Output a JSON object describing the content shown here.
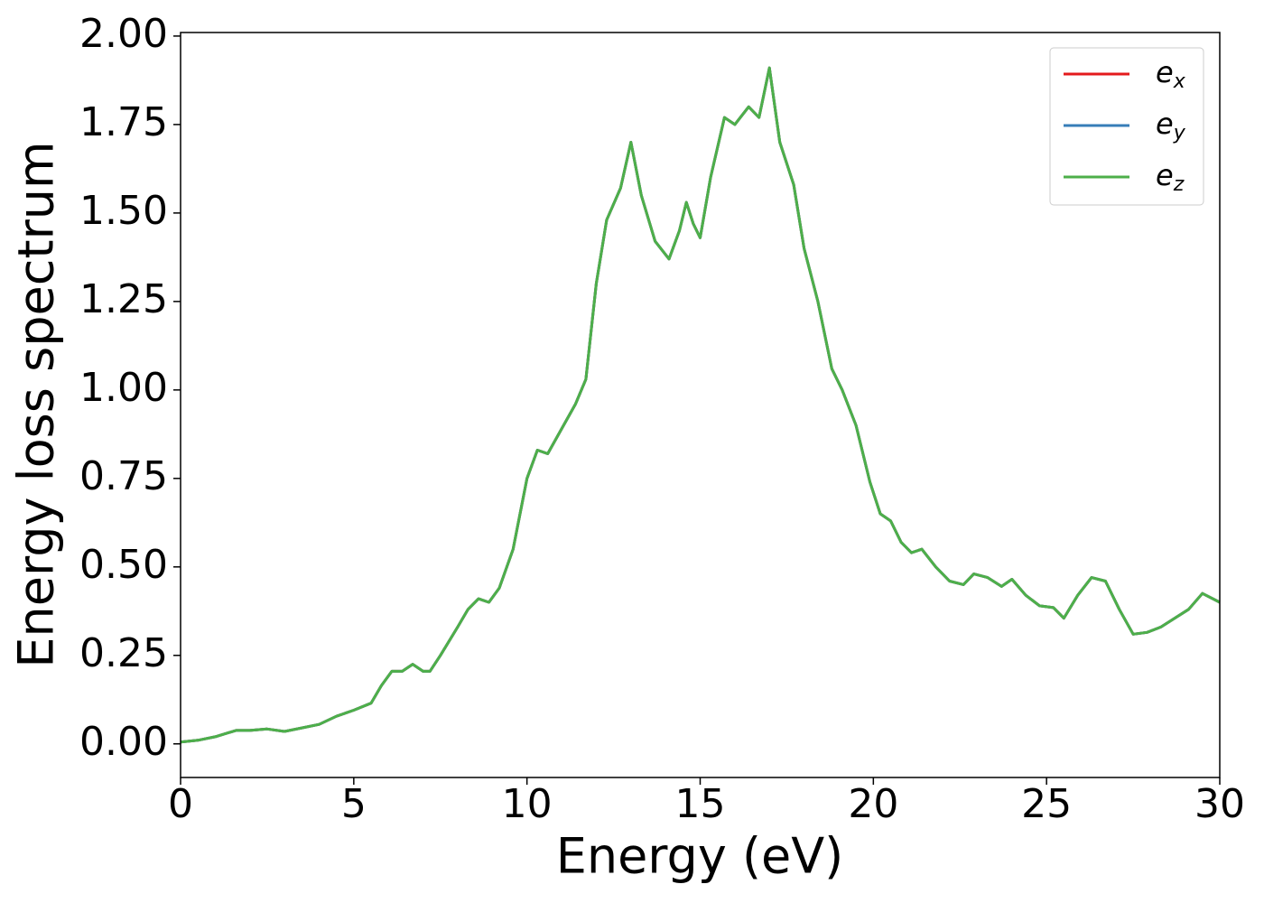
{
  "chart_data": {
    "type": "line",
    "xlabel": "Energy (eV)",
    "ylabel": "Energy loss spectrum",
    "x": [
      0,
      0.5,
      1,
      1.6,
      2,
      2.5,
      3,
      3.5,
      4,
      4.5,
      5,
      5.5,
      5.8,
      6.1,
      6.4,
      6.7,
      7,
      7.2,
      7.5,
      8,
      8.3,
      8.6,
      8.9,
      9.2,
      9.6,
      10,
      10.3,
      10.6,
      11,
      11.4,
      11.7,
      12,
      12.3,
      12.7,
      13,
      13.3,
      13.7,
      14.1,
      14.4,
      14.6,
      14.8,
      15,
      15.3,
      15.7,
      16,
      16.4,
      16.7,
      17,
      17.3,
      17.7,
      18,
      18.4,
      18.8,
      19.1,
      19.5,
      19.9,
      20.2,
      20.5,
      20.8,
      21.1,
      21.4,
      21.8,
      22.2,
      22.6,
      22.9,
      23.3,
      23.7,
      24,
      24.4,
      24.8,
      25.2,
      25.5,
      25.9,
      26.3,
      26.7,
      27.1,
      27.5,
      27.9,
      28.3,
      28.7,
      29.1,
      29.5,
      30
    ],
    "series": [
      {
        "name": "e_x",
        "color": "#e41a1c",
        "values": [
          0.005,
          0.01,
          0.02,
          0.038,
          0.038,
          0.042,
          0.035,
          0.045,
          0.055,
          0.078,
          0.095,
          0.115,
          0.165,
          0.205,
          0.205,
          0.225,
          0.205,
          0.205,
          0.25,
          0.33,
          0.38,
          0.41,
          0.4,
          0.44,
          0.55,
          0.75,
          0.83,
          0.82,
          0.89,
          0.96,
          1.03,
          1.3,
          1.48,
          1.57,
          1.7,
          1.55,
          1.42,
          1.37,
          1.45,
          1.53,
          1.47,
          1.43,
          1.6,
          1.77,
          1.75,
          1.8,
          1.77,
          1.91,
          1.7,
          1.58,
          1.4,
          1.25,
          1.06,
          1.0,
          0.9,
          0.74,
          0.65,
          0.63,
          0.57,
          0.54,
          0.55,
          0.5,
          0.46,
          0.45,
          0.48,
          0.47,
          0.445,
          0.465,
          0.42,
          0.39,
          0.385,
          0.355,
          0.42,
          0.47,
          0.46,
          0.38,
          0.31,
          0.315,
          0.33,
          0.355,
          0.38,
          0.425,
          0.4
        ]
      },
      {
        "name": "e_y",
        "color": "#377eb8",
        "values": [
          0.005,
          0.01,
          0.02,
          0.038,
          0.038,
          0.042,
          0.035,
          0.045,
          0.055,
          0.078,
          0.095,
          0.115,
          0.165,
          0.205,
          0.205,
          0.225,
          0.205,
          0.205,
          0.25,
          0.33,
          0.38,
          0.41,
          0.4,
          0.44,
          0.55,
          0.75,
          0.83,
          0.82,
          0.89,
          0.96,
          1.03,
          1.3,
          1.48,
          1.57,
          1.7,
          1.55,
          1.42,
          1.37,
          1.45,
          1.53,
          1.47,
          1.43,
          1.6,
          1.77,
          1.75,
          1.8,
          1.77,
          1.91,
          1.7,
          1.58,
          1.4,
          1.25,
          1.06,
          1.0,
          0.9,
          0.74,
          0.65,
          0.63,
          0.57,
          0.54,
          0.55,
          0.5,
          0.46,
          0.45,
          0.48,
          0.47,
          0.445,
          0.465,
          0.42,
          0.39,
          0.385,
          0.355,
          0.42,
          0.47,
          0.46,
          0.38,
          0.31,
          0.315,
          0.33,
          0.355,
          0.38,
          0.425,
          0.4
        ]
      },
      {
        "name": "e_z",
        "color": "#4daf4a",
        "values": [
          0.005,
          0.01,
          0.02,
          0.038,
          0.038,
          0.042,
          0.035,
          0.045,
          0.055,
          0.078,
          0.095,
          0.115,
          0.165,
          0.205,
          0.205,
          0.225,
          0.205,
          0.205,
          0.25,
          0.33,
          0.38,
          0.41,
          0.4,
          0.44,
          0.55,
          0.75,
          0.83,
          0.82,
          0.89,
          0.96,
          1.03,
          1.3,
          1.48,
          1.57,
          1.7,
          1.55,
          1.42,
          1.37,
          1.45,
          1.53,
          1.47,
          1.43,
          1.6,
          1.77,
          1.75,
          1.8,
          1.77,
          1.91,
          1.7,
          1.58,
          1.4,
          1.25,
          1.06,
          1.0,
          0.9,
          0.74,
          0.65,
          0.63,
          0.57,
          0.54,
          0.55,
          0.5,
          0.46,
          0.45,
          0.48,
          0.47,
          0.445,
          0.465,
          0.42,
          0.39,
          0.385,
          0.355,
          0.42,
          0.47,
          0.46,
          0.38,
          0.31,
          0.315,
          0.33,
          0.355,
          0.38,
          0.425,
          0.4
        ]
      }
    ],
    "xlim": [
      0,
      30
    ],
    "xticks": [
      0,
      5,
      10,
      15,
      20,
      25,
      30
    ],
    "ylim": [
      -0.095,
      2.01
    ],
    "yticks": [
      {
        "value": 0,
        "label": "0.00"
      },
      {
        "value": 0.25,
        "label": "0.25"
      },
      {
        "value": 0.5,
        "label": "0.50"
      },
      {
        "value": 0.75,
        "label": "0.75"
      },
      {
        "value": 1.0,
        "label": "1.00"
      },
      {
        "value": 1.25,
        "label": "1.25"
      },
      {
        "value": 1.5,
        "label": "1.50"
      },
      {
        "value": 1.75,
        "label": "1.75"
      },
      {
        "value": 2.0,
        "label": "2.00"
      }
    ],
    "grid": false,
    "legend": "upper right"
  }
}
